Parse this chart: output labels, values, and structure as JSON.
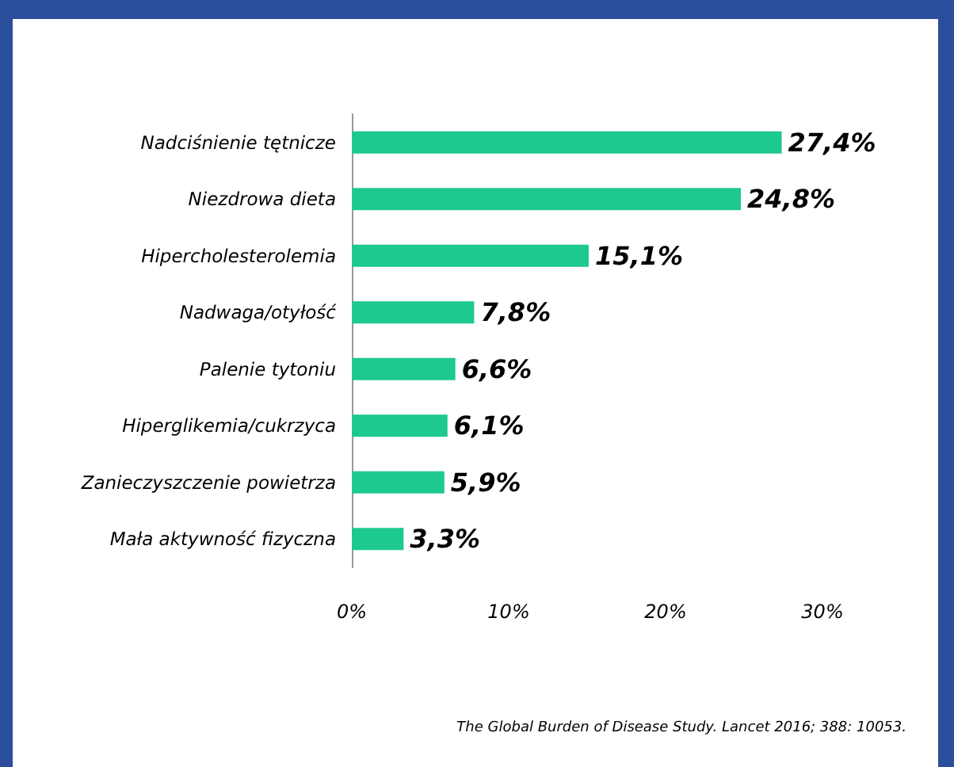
{
  "chart_data": {
    "type": "bar",
    "orientation": "horizontal",
    "categories": [
      "Nadciśnienie tętnicze",
      "Niezdrowa dieta",
      "Hipercholesterolemia",
      "Nadwaga/otyłość",
      "Palenie tytoniu",
      "Hiperglikemia/cukrzyca",
      "Zanieczyszczenie powietrza",
      "Mała aktywność fizyczna"
    ],
    "values": [
      27.4,
      24.8,
      15.1,
      7.8,
      6.6,
      6.1,
      5.9,
      3.3
    ],
    "value_labels": [
      "27,4%",
      "24,8%",
      "15,1%",
      "7,8%",
      "6,6%",
      "6,1%",
      "5,9%",
      "3,3%"
    ],
    "color": "#1ec891",
    "xlim": [
      0,
      30
    ],
    "xticks": [
      {
        "value": 0,
        "label": "0%"
      },
      {
        "value": 10,
        "label": "10%"
      },
      {
        "value": 20,
        "label": "20%"
      },
      {
        "value": 30,
        "label": "30%"
      }
    ],
    "grid": false,
    "annotations": [
      "The Global Burden of Disease Study. Lancet 2016; 388: 10053."
    ]
  }
}
